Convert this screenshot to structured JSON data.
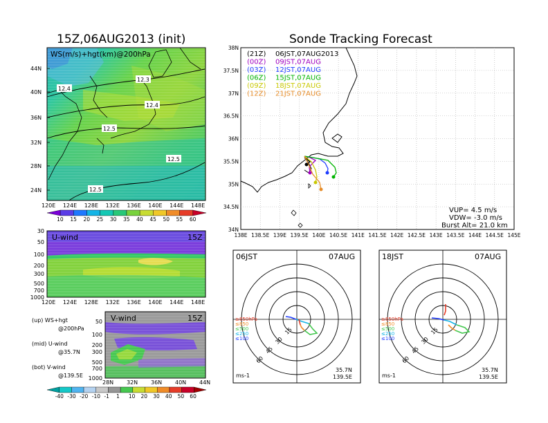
{
  "left": {
    "title": "15Z,06AUG2013 (init)",
    "map": {
      "label": "WS(m/s)+hgt(km)@200hPa",
      "xticks": [
        "120E",
        "124E",
        "128E",
        "132E",
        "136E",
        "140E",
        "144E",
        "148E"
      ],
      "yticks": [
        "44N",
        "40N",
        "36N",
        "32N",
        "28N",
        "24N"
      ],
      "contours": [
        "12.4",
        "12.3",
        "12.4",
        "12.5",
        "12.5",
        "12.5"
      ],
      "colorbar": [
        "10",
        "15",
        "20",
        "25",
        "30",
        "35",
        "40",
        "45",
        "50",
        "55",
        "60"
      ]
    },
    "uwind": {
      "label": "U-wind",
      "time": "15Z",
      "yticks": [
        "30",
        "50",
        "100",
        "200",
        "300",
        "500",
        "700",
        "1000"
      ],
      "xticks": [
        "120E",
        "124E",
        "128E",
        "132E",
        "136E",
        "140E",
        "144E",
        "148E"
      ]
    },
    "vwind": {
      "label": "V-wind",
      "time": "15Z",
      "yticks": [
        "50",
        "100",
        "200",
        "300",
        "500",
        "700",
        "1000"
      ],
      "xticks": [
        "28N",
        "32N",
        "36N",
        "40N",
        "44N"
      ],
      "colorbar": [
        "-40",
        "-30",
        "-20",
        "-10",
        "-1",
        "1",
        "10",
        "20",
        "30",
        "40",
        "50",
        "60"
      ]
    },
    "legend": {
      "up": "(up) WS+hgt",
      "up2": "@200hPa",
      "mid": "(mid) U-wind",
      "mid2": "@35.7N",
      "bot": "(bot) V-wind",
      "bot2": "@139.5E"
    }
  },
  "right": {
    "title": "Sonde Tracking Forecast",
    "xticks": [
      "138E",
      "138.5E",
      "139E",
      "139.5E",
      "140E",
      "140.5E",
      "141E",
      "141.5E",
      "142E",
      "142.5E",
      "143E",
      "143.5E",
      "144E",
      "144.5E",
      "145E"
    ],
    "yticks": [
      "38N",
      "37.5N",
      "37N",
      "36.5N",
      "36N",
      "35.5N",
      "35N",
      "34.5N",
      "34N"
    ],
    "legend": [
      {
        "code": "(21Z)",
        "text": "06JST,07AUG2013",
        "color": "#000000"
      },
      {
        "code": "(00Z)",
        "text": "09JST,07AUG",
        "color": "#a000c0"
      },
      {
        "code": "(03Z)",
        "text": "12JST,07AUG",
        "color": "#1e3cff"
      },
      {
        "code": "(06Z)",
        "text": "15JST,07AUG",
        "color": "#00b400"
      },
      {
        "code": "(09Z)",
        "text": "18JST,07AUG",
        "color": "#c8c800"
      },
      {
        "code": "(12Z)",
        "text": "21JST,07AUG",
        "color": "#e68c28"
      }
    ],
    "info": {
      "vup": "VUP= 4.5 m/s",
      "vdw": "VDW= -3.0 m/s",
      "burst": "Burst Alt= 21.0 km"
    }
  },
  "hodo1": {
    "time": "06JST",
    "date": "07AUG",
    "lat": "35.7N",
    "lon": "139.5E",
    "unit": "ms-1",
    "rings": [
      "15",
      "30",
      "45",
      "60"
    ],
    "levels": [
      "≥850hPa",
      "≤850",
      "≤500",
      "≤250",
      "≤100"
    ]
  },
  "hodo2": {
    "time": "18JST",
    "date": "07AUG",
    "lat": "35.7N",
    "lon": "139.5E",
    "unit": "ms-1",
    "rings": [
      "15",
      "30",
      "45",
      "60"
    ],
    "levels": [
      "≥850hPa",
      "≤850",
      "≤500",
      "≤250",
      "≤100"
    ]
  }
}
